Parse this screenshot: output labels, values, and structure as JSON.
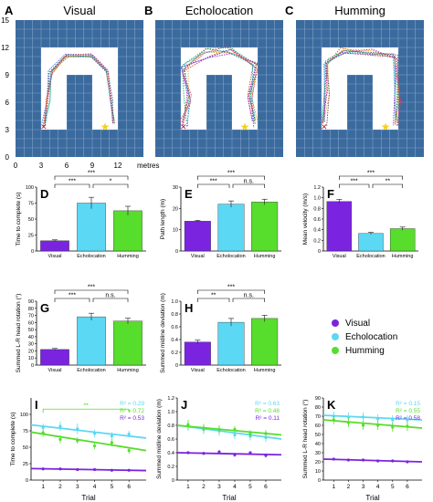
{
  "colors": {
    "visual": "#7a24e0",
    "echolocation": "#5ad8f4",
    "humming": "#57dd2b",
    "arena": "#3b6a9e",
    "grid": "#7fa3c8"
  },
  "maps": {
    "titles": [
      {
        "letter": "A",
        "title": "Visual"
      },
      {
        "letter": "B",
        "title": "Echolocation"
      },
      {
        "letter": "C",
        "title": "Humming"
      }
    ],
    "x_ticks": [
      "0",
      "3",
      "6",
      "9",
      "12"
    ],
    "x_unit": "metres",
    "y_ticks": [
      "15",
      "12",
      "9",
      "6",
      "3",
      "0"
    ]
  },
  "legend": [
    "Visual",
    "Echolocation",
    "Humming"
  ],
  "chart_data": [
    {
      "panel": "D",
      "type": "bar",
      "ylabel": "Time to complete (s)",
      "categories": [
        "Visual",
        "Echolocation",
        "Humming"
      ],
      "values": [
        16,
        75,
        63
      ],
      "errors": [
        1.5,
        9,
        7
      ],
      "ylim": [
        0,
        100
      ],
      "yticks": [
        "0",
        "25",
        "50",
        "75",
        "100"
      ],
      "sig": [
        {
          "pair": [
            0,
            2
          ],
          "label": "***"
        },
        {
          "pair": [
            0,
            1
          ],
          "label": "***"
        },
        {
          "pair": [
            1,
            2
          ],
          "label": "*"
        }
      ]
    },
    {
      "panel": "E",
      "type": "bar",
      "ylabel": "Path length (m)",
      "categories": [
        "Visual",
        "Echolocation",
        "Humming"
      ],
      "values": [
        14,
        22,
        23
      ],
      "errors": [
        0.4,
        1.5,
        1.3
      ],
      "ylim": [
        0,
        30
      ],
      "yticks": [
        "0",
        "10",
        "20",
        "30"
      ],
      "sig": [
        {
          "pair": [
            0,
            2
          ],
          "label": "***"
        },
        {
          "pair": [
            0,
            1
          ],
          "label": "***"
        },
        {
          "pair": [
            1,
            2
          ],
          "label": "n.s."
        }
      ]
    },
    {
      "panel": "F",
      "type": "bar",
      "ylabel": "Mean velocity (m/s)",
      "categories": [
        "Visual",
        "Echolocation",
        "Humming"
      ],
      "values": [
        0.93,
        0.33,
        0.42
      ],
      "errors": [
        0.04,
        0.02,
        0.03
      ],
      "ylim": [
        0,
        1.2
      ],
      "yticks": [
        "0",
        "0.2",
        "0.4",
        "0.6",
        "0.8",
        "1.0",
        "1.2"
      ],
      "sig": [
        {
          "pair": [
            0,
            2
          ],
          "label": "***"
        },
        {
          "pair": [
            0,
            1
          ],
          "label": "***"
        },
        {
          "pair": [
            1,
            2
          ],
          "label": "**"
        }
      ]
    },
    {
      "panel": "G",
      "type": "bar",
      "ylabel": "Summed L-R head rotation (°)",
      "categories": [
        "Visual",
        "Echolocation",
        "Humming"
      ],
      "values": [
        22,
        68,
        62
      ],
      "errors": [
        1.5,
        5,
        4
      ],
      "ylim": [
        0,
        90
      ],
      "yticks": [
        "0",
        "10",
        "20",
        "30",
        "40",
        "50",
        "60",
        "70",
        "80",
        "90"
      ],
      "sig": [
        {
          "pair": [
            0,
            2
          ],
          "label": "***"
        },
        {
          "pair": [
            0,
            1
          ],
          "label": "***"
        },
        {
          "pair": [
            1,
            2
          ],
          "label": "n.s."
        }
      ]
    },
    {
      "panel": "H",
      "type": "bar",
      "ylabel": "Summed midline deviation (m)",
      "categories": [
        "Visual",
        "Echolocation",
        "Humming"
      ],
      "values": [
        0.36,
        0.67,
        0.73
      ],
      "errors": [
        0.03,
        0.06,
        0.05
      ],
      "ylim": [
        0,
        1.0
      ],
      "yticks": [
        "0",
        "0.2",
        "0.4",
        "0.6",
        "0.8",
        "1.0"
      ],
      "sig": [
        {
          "pair": [
            0,
            2
          ],
          "label": "***"
        },
        {
          "pair": [
            0,
            1
          ],
          "label": "**"
        },
        {
          "pair": [
            1,
            2
          ],
          "label": "n.s."
        }
      ]
    },
    {
      "panel": "I",
      "type": "scatter",
      "xlabel": "Trial",
      "ylabel": "Time to complete (s)",
      "x": [
        1,
        2,
        3,
        4,
        5,
        6
      ],
      "xlim": [
        0.3,
        7
      ],
      "ylim": [
        0,
        125
      ],
      "yticks": [
        "0",
        "25",
        "50",
        "75",
        "100"
      ],
      "sig": [
        {
          "pair": [
            1,
            6
          ],
          "y": 108,
          "label": "**"
        }
      ],
      "series": [
        {
          "name": "Visual",
          "r2": "R² = 0.53",
          "values": [
            17,
            17,
            16,
            16,
            15,
            15
          ],
          "errors": [
            1,
            1,
            1,
            1,
            1,
            1
          ],
          "fit": [
            17.5,
            14.5
          ]
        },
        {
          "name": "Echolocation",
          "r2": "R² = 0.29",
          "values": [
            80,
            82,
            78,
            71,
            67,
            70
          ],
          "errors": [
            6,
            7,
            8,
            6,
            6,
            5
          ],
          "fit": [
            84,
            64
          ]
        },
        {
          "name": "Humming",
          "r2": "R² = 0.72",
          "values": [
            72,
            62,
            60,
            52,
            57,
            45
          ],
          "errors": [
            6,
            6,
            5,
            5,
            6,
            5
          ],
          "fit": [
            73,
            45
          ]
        }
      ]
    },
    {
      "panel": "J",
      "type": "scatter",
      "xlabel": "Trial",
      "ylabel": "Summed midline deviation (m)",
      "x": [
        1,
        2,
        3,
        4,
        5,
        6
      ],
      "xlim": [
        0.3,
        7
      ],
      "ylim": [
        0,
        1.2
      ],
      "yticks": [
        "0",
        "0.2",
        "0.4",
        "0.6",
        "0.8",
        "1.0",
        "1.2"
      ],
      "series": [
        {
          "name": "Visual",
          "r2": "R² = 0.11",
          "values": [
            0.4,
            0.39,
            0.41,
            0.37,
            0.4,
            0.36
          ],
          "errors": [
            0.02,
            0.02,
            0.03,
            0.03,
            0.02,
            0.03
          ],
          "fit": [
            0.4,
            0.37
          ]
        },
        {
          "name": "Echolocation",
          "r2": "R² = 0.63",
          "values": [
            0.79,
            0.74,
            0.72,
            0.66,
            0.64,
            0.62
          ],
          "errors": [
            0.07,
            0.07,
            0.07,
            0.06,
            0.06,
            0.06
          ],
          "fit": [
            0.8,
            0.6
          ]
        },
        {
          "name": "Humming",
          "r2": "R² = 0.48",
          "values": [
            0.81,
            0.76,
            0.74,
            0.74,
            0.68,
            0.68
          ],
          "errors": [
            0.07,
            0.06,
            0.06,
            0.05,
            0.05,
            0.05
          ],
          "fit": [
            0.8,
            0.66
          ]
        }
      ]
    },
    {
      "panel": "K",
      "type": "scatter",
      "xlabel": "Trial",
      "ylabel": "Summed L-R head rotation (°)",
      "x": [
        1,
        2,
        3,
        4,
        5,
        6
      ],
      "xlim": [
        0.3,
        7
      ],
      "ylim": [
        0,
        90
      ],
      "yticks": [
        "0",
        "10",
        "20",
        "30",
        "40",
        "50",
        "60",
        "70",
        "80",
        "90"
      ],
      "series": [
        {
          "name": "Visual",
          "r2": "R² = 0.58",
          "values": [
            23,
            22,
            22,
            21,
            21,
            20
          ],
          "errors": [
            1.5,
            1.5,
            1.5,
            1.5,
            1.5,
            1.5
          ],
          "fit": [
            23,
            20
          ]
        },
        {
          "name": "Echolocation",
          "r2": "R² = 0.15",
          "values": [
            70,
            69,
            69,
            67,
            66,
            66
          ],
          "errors": [
            5,
            5,
            5,
            5,
            5,
            5
          ],
          "fit": [
            71,
            66
          ]
        },
        {
          "name": "Humming",
          "r2": "R² = 0.55",
          "values": [
            66,
            63,
            60,
            60,
            58,
            59
          ],
          "errors": [
            5,
            5,
            5,
            5,
            5,
            5
          ],
          "fit": [
            66,
            57
          ]
        }
      ]
    }
  ]
}
